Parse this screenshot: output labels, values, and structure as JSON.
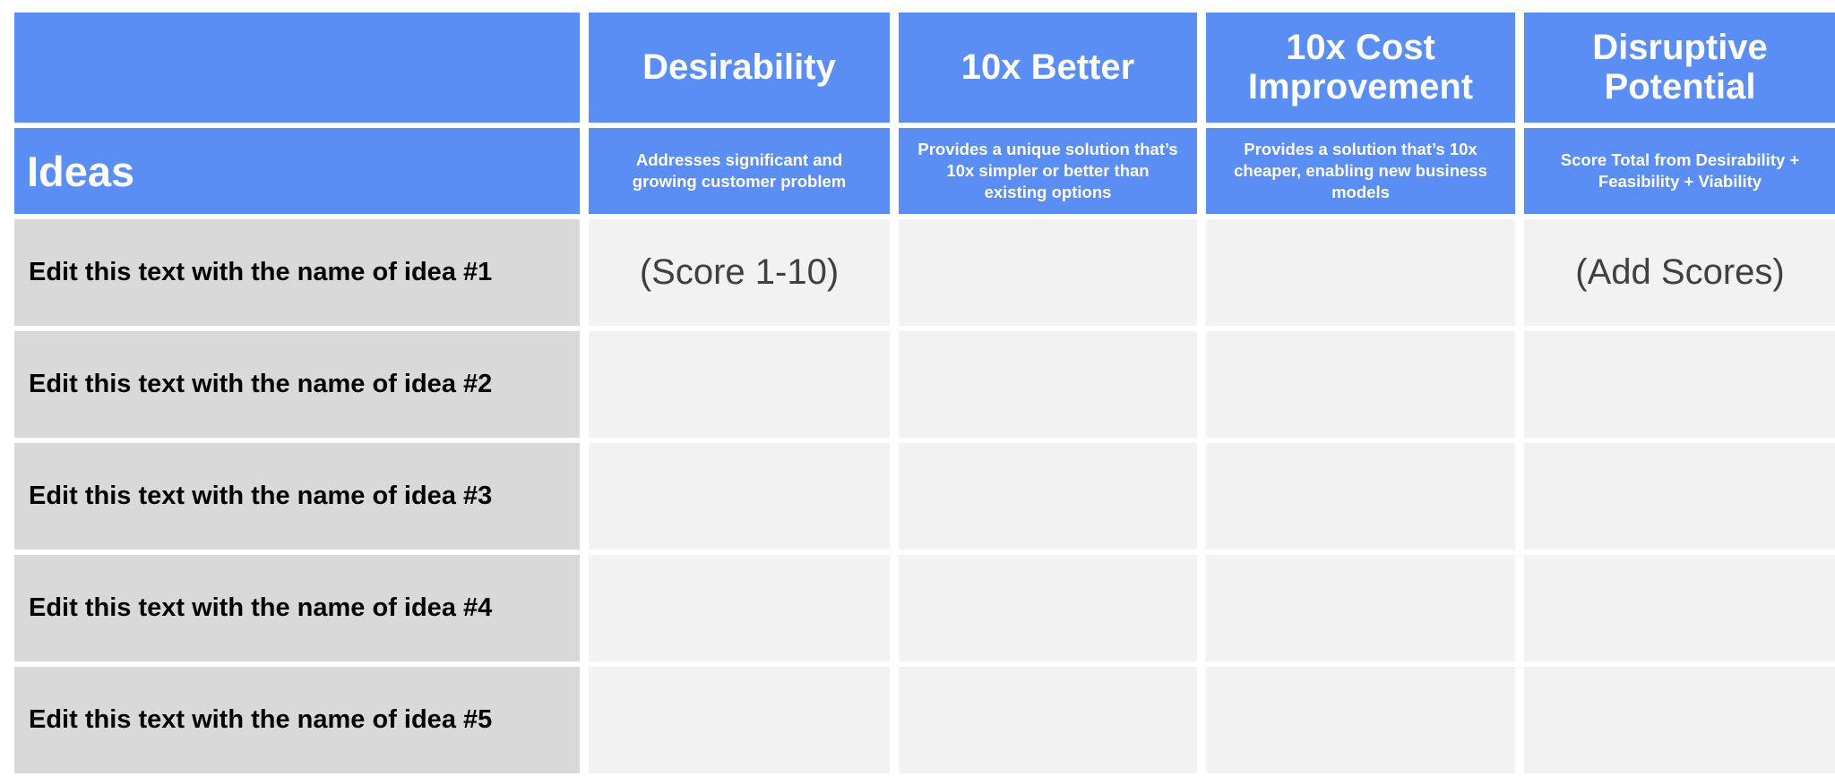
{
  "header": {
    "ideas_label": "Ideas",
    "columns": [
      {
        "title": "Desirability",
        "description": "Addresses significant and growing customer problem"
      },
      {
        "title": "10x Better",
        "description": "Provides a unique solution that’s 10x simpler or better than existing options"
      },
      {
        "title": "10x Cost Improvement",
        "description": "Provides a solution that’s 10x cheaper, enabling new business models"
      },
      {
        "title": "Disruptive Potential",
        "description": "Score Total from Desirability + Feasibility + Viability"
      }
    ]
  },
  "rows": [
    {
      "name": "Edit this text with the name of idea #1",
      "scores": [
        "(Score 1-10)",
        "",
        "",
        "(Add Scores)"
      ]
    },
    {
      "name": "Edit this text with the name of idea #2",
      "scores": [
        "",
        "",
        "",
        ""
      ]
    },
    {
      "name": "Edit this text with the name of idea #3",
      "scores": [
        "",
        "",
        "",
        ""
      ]
    },
    {
      "name": "Edit this text with the name of idea #4",
      "scores": [
        "",
        "",
        "",
        ""
      ]
    },
    {
      "name": "Edit this text with the name of idea #5",
      "scores": [
        "",
        "",
        "",
        ""
      ]
    }
  ],
  "colors": {
    "header_blue": "#5b8ef5",
    "idea_gray": "#d9d9d9",
    "score_gray": "#f2f2f2"
  }
}
